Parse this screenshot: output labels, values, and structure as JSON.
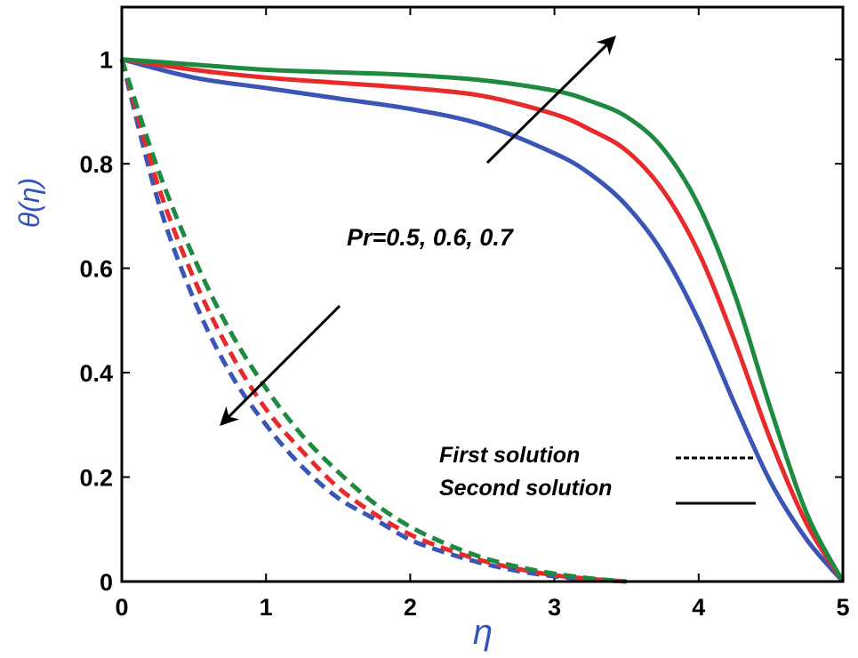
{
  "chart_data": {
    "type": "line",
    "title": "",
    "xlabel": "η",
    "ylabel": "θ(η)",
    "xlim": [
      0,
      5
    ],
    "ylim": [
      0,
      1.1
    ],
    "xticks": [
      "0",
      "1",
      "2",
      "3",
      "4",
      "5"
    ],
    "yticks": [
      "0",
      "0.2",
      "0.4",
      "0.6",
      "0.8",
      "1"
    ],
    "annotation": "Pr=0.5, 0.6, 0.7",
    "legend": {
      "position": "bottom-right",
      "entries": [
        {
          "label": "First solution",
          "style": "dashed"
        },
        {
          "label": "Second solution",
          "style": "solid"
        }
      ]
    },
    "series": [
      {
        "name": "Pr=0.5 first solution",
        "style": "dashed",
        "color": "#3a55b5",
        "x": [
          0,
          0.25,
          0.5,
          0.75,
          1.0,
          1.25,
          1.5,
          1.75,
          2.0,
          2.25,
          2.5,
          2.75,
          3.0,
          3.25,
          3.5
        ],
        "y": [
          1.0,
          0.73,
          0.54,
          0.4,
          0.3,
          0.22,
          0.16,
          0.12,
          0.08,
          0.055,
          0.035,
          0.02,
          0.01,
          0.004,
          0.0
        ]
      },
      {
        "name": "Pr=0.6 first solution",
        "style": "dashed",
        "color": "#e82a2a",
        "x": [
          0,
          0.25,
          0.5,
          0.75,
          1.0,
          1.25,
          1.5,
          1.75,
          2.0,
          2.25,
          2.5,
          2.75,
          3.0,
          3.25,
          3.5
        ],
        "y": [
          1.0,
          0.76,
          0.58,
          0.44,
          0.33,
          0.25,
          0.18,
          0.13,
          0.09,
          0.062,
          0.04,
          0.024,
          0.012,
          0.005,
          0.0
        ]
      },
      {
        "name": "Pr=0.7 first solution",
        "style": "dashed",
        "color": "#1e8a40",
        "x": [
          0,
          0.25,
          0.5,
          0.75,
          1.0,
          1.25,
          1.5,
          1.75,
          2.0,
          2.25,
          2.5,
          2.75,
          3.0,
          3.25,
          3.5
        ],
        "y": [
          1.0,
          0.79,
          0.62,
          0.48,
          0.37,
          0.28,
          0.21,
          0.15,
          0.105,
          0.072,
          0.046,
          0.028,
          0.015,
          0.006,
          0.0
        ]
      },
      {
        "name": "Pr=0.5 second solution",
        "style": "solid",
        "color": "#3a55b5",
        "x": [
          0,
          0.5,
          1.0,
          1.5,
          2.0,
          2.5,
          3.0,
          3.25,
          3.5,
          3.75,
          4.0,
          4.25,
          4.5,
          4.75,
          5.0
        ],
        "y": [
          1.0,
          0.965,
          0.945,
          0.925,
          0.905,
          0.875,
          0.82,
          0.78,
          0.72,
          0.63,
          0.5,
          0.34,
          0.19,
          0.08,
          0.0
        ]
      },
      {
        "name": "Pr=0.6 second solution",
        "style": "solid",
        "color": "#e82a2a",
        "x": [
          0,
          0.5,
          1.0,
          1.5,
          2.0,
          2.5,
          3.0,
          3.25,
          3.5,
          3.75,
          4.0,
          4.25,
          4.5,
          4.75,
          5.0
        ],
        "y": [
          1.0,
          0.98,
          0.965,
          0.955,
          0.945,
          0.93,
          0.895,
          0.865,
          0.825,
          0.75,
          0.63,
          0.46,
          0.27,
          0.11,
          0.0
        ]
      },
      {
        "name": "Pr=0.7 second solution",
        "style": "solid",
        "color": "#1e8a40",
        "x": [
          0,
          0.5,
          1.0,
          1.5,
          2.0,
          2.5,
          3.0,
          3.25,
          3.5,
          3.75,
          4.0,
          4.25,
          4.5,
          4.75,
          5.0
        ],
        "y": [
          1.0,
          0.99,
          0.98,
          0.975,
          0.97,
          0.96,
          0.94,
          0.92,
          0.89,
          0.83,
          0.72,
          0.55,
          0.33,
          0.13,
          0.0
        ]
      }
    ]
  }
}
